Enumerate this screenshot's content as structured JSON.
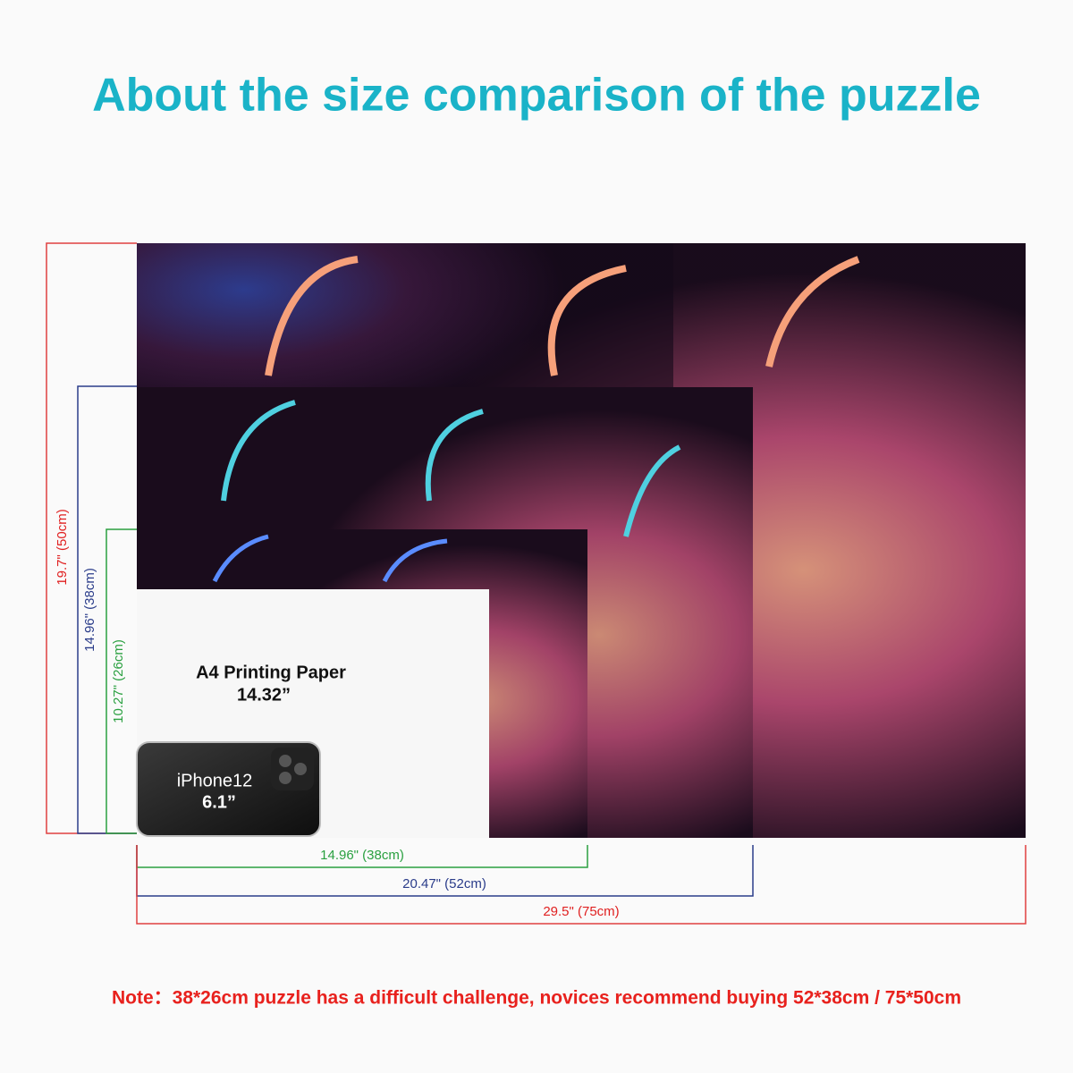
{
  "header": {
    "title": "About the size comparison of the puzzle"
  },
  "heights": {
    "large": "19.7\" (50cm)",
    "medium": "14.96\" (38cm)",
    "small": "10.27\" (26cm)"
  },
  "widths": {
    "small": "14.96\" (38cm)",
    "medium": "20.47\" (52cm)",
    "large": "29.5\" (75cm)"
  },
  "paper": {
    "name": "A4 Printing Paper",
    "size": "14.32”"
  },
  "phone": {
    "name": "iPhone12",
    "size": "6.1”"
  },
  "note": "Note：38*26cm puzzle has a difficult challenge, novices recommend buying 52*38cm / 75*50cm"
}
